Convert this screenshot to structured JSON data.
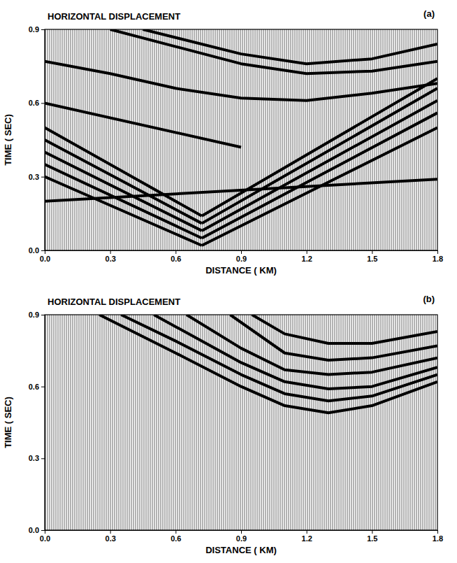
{
  "chart_data": [
    {
      "type": "line",
      "title": "HORIZONTAL DISPLACEMENT",
      "panel_label": "(a)",
      "x_label": "DISTANCE ( KM)",
      "y_label": "TIME ( SEC)",
      "xlim": [
        0,
        1.8
      ],
      "ylim": [
        0,
        0.9
      ],
      "xticks": [
        {
          "value": 0,
          "label": "0.0"
        },
        0.3,
        0.6,
        0.9,
        1.2,
        1.5,
        1.8
      ],
      "yticks": [
        {
          "value": 0,
          "label": "0.0"
        },
        0.3,
        0.6,
        0.9
      ],
      "grid": false,
      "color": "#000000",
      "line_style": "solid",
      "series": [
        {
          "x": [
            0,
            0.72
          ],
          "values": [
            0.3,
            0.02
          ]
        },
        {
          "x": [
            0,
            0.72
          ],
          "values": [
            0.35,
            0.05
          ]
        },
        {
          "x": [
            0,
            0.72
          ],
          "values": [
            0.4,
            0.08
          ]
        },
        {
          "x": [
            0,
            0.72
          ],
          "values": [
            0.45,
            0.11
          ]
        },
        {
          "x": [
            0,
            0.72
          ],
          "values": [
            0.5,
            0.14
          ]
        },
        {
          "x": [
            0.72,
            1.8
          ],
          "values": [
            0.02,
            0.5
          ]
        },
        {
          "x": [
            0.72,
            1.8
          ],
          "values": [
            0.05,
            0.56
          ]
        },
        {
          "x": [
            0.72,
            1.8
          ],
          "values": [
            0.08,
            0.61
          ]
        },
        {
          "x": [
            0.72,
            1.8
          ],
          "values": [
            0.11,
            0.66
          ]
        },
        {
          "x": [
            0.72,
            1.8
          ],
          "values": [
            0.14,
            0.7
          ]
        },
        {
          "x": [
            0,
            1.8
          ],
          "values": [
            0.2,
            0.29
          ]
        },
        {
          "x": [
            0,
            0.9
          ],
          "values": [
            0.6,
            0.42
          ]
        },
        {
          "x": [
            0,
            0.3,
            0.6,
            0.9,
            1.2,
            1.5,
            1.8
          ],
          "values": [
            0.77,
            0.72,
            0.66,
            0.62,
            0.61,
            0.64,
            0.68
          ]
        },
        {
          "x": [
            0.3,
            0.6,
            0.9,
            1.2,
            1.5,
            1.8
          ],
          "values": [
            0.9,
            0.83,
            0.76,
            0.72,
            0.73,
            0.77
          ]
        },
        {
          "x": [
            0.45,
            0.9,
            1.2,
            1.5,
            1.8
          ],
          "values": [
            0.9,
            0.8,
            0.76,
            0.78,
            0.84
          ]
        }
      ]
    },
    {
      "type": "line",
      "title": "HORIZONTAL DISPLACEMENT",
      "panel_label": "(b)",
      "x_label": "DISTANCE ( KM)",
      "y_label": "TIME ( SEC)",
      "xlim": [
        0,
        1.8
      ],
      "ylim": [
        0,
        0.9
      ],
      "xticks": [
        {
          "value": 0,
          "label": "0.0"
        },
        0.3,
        0.6,
        0.9,
        1.2,
        1.5,
        1.8
      ],
      "yticks": [
        {
          "value": 0,
          "label": "0.0"
        },
        0.3,
        0.6,
        0.9
      ],
      "grid": false,
      "color": "#000000",
      "line_style": "solid",
      "series": [
        {
          "x": [
            0.25,
            0.6,
            0.9,
            1.1,
            1.3,
            1.5,
            1.8
          ],
          "values": [
            0.9,
            0.74,
            0.6,
            0.52,
            0.49,
            0.52,
            0.62
          ]
        },
        {
          "x": [
            0.35,
            0.6,
            0.9,
            1.1,
            1.3,
            1.5,
            1.8
          ],
          "values": [
            0.9,
            0.79,
            0.65,
            0.57,
            0.54,
            0.56,
            0.65
          ]
        },
        {
          "x": [
            0.5,
            0.9,
            1.1,
            1.3,
            1.5,
            1.8
          ],
          "values": [
            0.9,
            0.7,
            0.62,
            0.59,
            0.6,
            0.68
          ]
        },
        {
          "x": [
            0.65,
            0.9,
            1.1,
            1.3,
            1.5,
            1.8
          ],
          "values": [
            0.9,
            0.76,
            0.67,
            0.65,
            0.66,
            0.72
          ]
        },
        {
          "x": [
            0.85,
            1.1,
            1.3,
            1.5,
            1.8
          ],
          "values": [
            0.9,
            0.74,
            0.71,
            0.72,
            0.77
          ]
        },
        {
          "x": [
            0.95,
            1.1,
            1.3,
            1.5,
            1.8
          ],
          "values": [
            0.9,
            0.82,
            0.78,
            0.78,
            0.83
          ]
        }
      ]
    }
  ]
}
